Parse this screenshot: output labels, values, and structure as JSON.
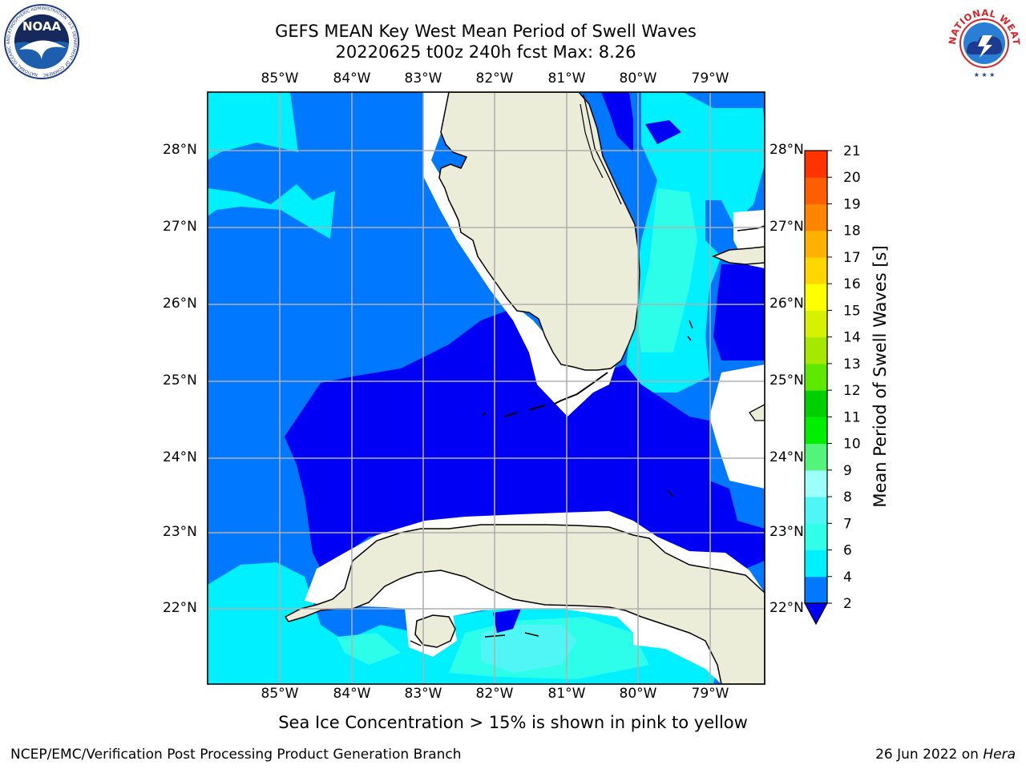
{
  "title": {
    "line1": "GEFS MEAN Key West Mean Period of Swell Waves",
    "line2": "20220625 t00z 240h fcst   Max: 8.26"
  },
  "map": {
    "lon_labels": [
      "85°W",
      "84°W",
      "83°W",
      "82°W",
      "81°W",
      "80°W",
      "79°W"
    ],
    "lat_labels": [
      "28°N",
      "27°N",
      "26°N",
      "25°N",
      "24°N",
      "23°N",
      "22°N"
    ],
    "land_color": "#ecedd9",
    "gridline_color": "#b0b0b0"
  },
  "colorbar": {
    "label": "Mean Period of Swell Waves [s]",
    "ticks": [
      "2",
      "4",
      "6",
      "7",
      "8",
      "9",
      "10",
      "11",
      "12",
      "13",
      "14",
      "15",
      "16",
      "17",
      "18",
      "19",
      "20",
      "21"
    ],
    "colors": [
      "#0000f5",
      "#0078ff",
      "#00f0ff",
      "#31ffe8",
      "#50f5f5",
      "#9dfff9",
      "#52f579",
      "#00ef00",
      "#00d000",
      "#5fe800",
      "#a6e800",
      "#d6f200",
      "#ffff00",
      "#ffd700",
      "#ffb100",
      "#ff8500",
      "#ff5e00",
      "#ff3300",
      "#ff0000"
    ],
    "extend": "min"
  },
  "chart_data": {
    "type": "heatmap",
    "title": "GEFS MEAN Key West Mean Period of Swell Waves",
    "subtitle": "20220625 t00z 240h fcst   Max: 8.26",
    "variable": "Mean Period of Swell Waves [s]",
    "max": 8.26,
    "lon_range": [
      -86,
      -78.25
    ],
    "lat_range": [
      21,
      28.8
    ],
    "levels": [
      2,
      4,
      6,
      7,
      8,
      9,
      10,
      11,
      12,
      13,
      14,
      15,
      16,
      17,
      18,
      19,
      20,
      21
    ]
  },
  "logos": {
    "left": "NOAA",
    "right_ring": "NATIONAL WEATHER SERVICE"
  },
  "footer": {
    "note": "Sea Ice Concentration > 15% is shown in pink to yellow",
    "left": "NCEP/EMC/Verification Post Processing Product Generation Branch",
    "right_date": "26 Jun 2022 on ",
    "right_host": "Hera"
  }
}
